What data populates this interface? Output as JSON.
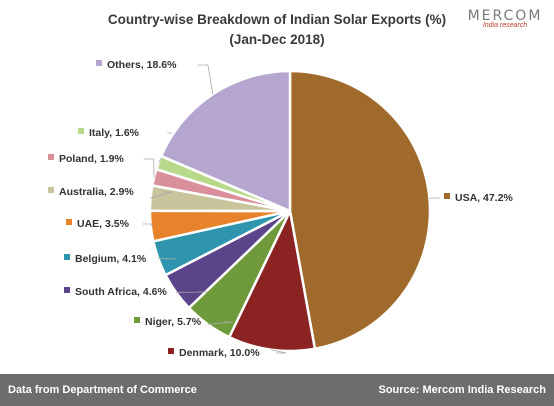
{
  "chart_data": {
    "type": "pie",
    "title": "Country-wise Breakdown of Indian Solar Exports (%)",
    "subtitle": "(Jan-Dec 2018)",
    "slices": [
      {
        "label": "USA, 47.2%",
        "value": 47.2,
        "color": "#a06a2c"
      },
      {
        "label": "Denmark, 10.0%",
        "value": 10.0,
        "color": "#8b2323"
      },
      {
        "label": "Niger, 5.7%",
        "value": 5.7,
        "color": "#6f9a3b"
      },
      {
        "label": "South Africa, 4.6%",
        "value": 4.6,
        "color": "#5b4489"
      },
      {
        "label": "Belgium, 4.1%",
        "value": 4.1,
        "color": "#2f94ad"
      },
      {
        "label": "UAE, 3.5%",
        "value": 3.5,
        "color": "#e8822b"
      },
      {
        "label": "Australia, 2.9%",
        "value": 2.9,
        "color": "#c8c49b"
      },
      {
        "label": "Poland, 1.9%",
        "value": 1.9,
        "color": "#d9909a"
      },
      {
        "label": "Italy, 1.6%",
        "value": 1.6,
        "color": "#b9d98a"
      },
      {
        "label": "Others, 18.6%",
        "value": 18.6,
        "color": "#b4a6cf"
      }
    ]
  },
  "brand": {
    "name": "MERCOM",
    "tagline": "India research"
  },
  "footer": {
    "left": "Data from Department of Commerce",
    "right": "Source: Mercom India Research"
  }
}
